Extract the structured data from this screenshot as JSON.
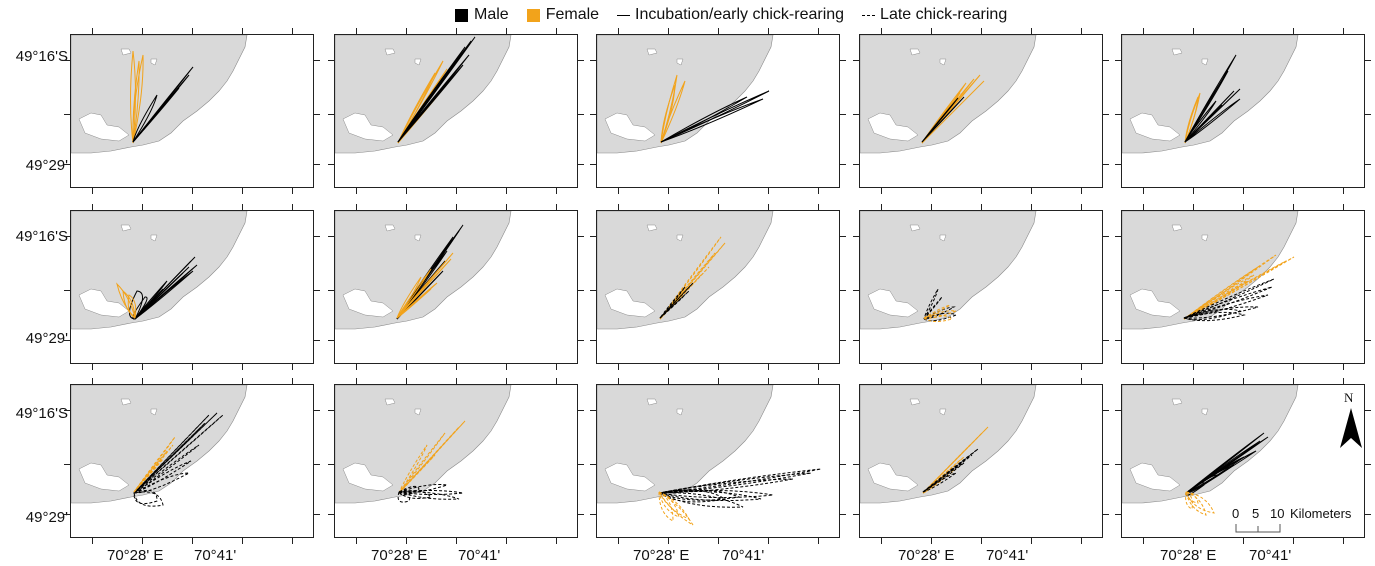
{
  "legend": {
    "male": "Male",
    "female": "Female",
    "incubation": "Incubation/early chick-rearing",
    "late": "Late chick-rearing"
  },
  "colors": {
    "male": "#000000",
    "female": "#f2a31b",
    "land": "#d9d9d9"
  },
  "axes": {
    "lat_top": "49°16'S",
    "lat_bottom": "49°29'",
    "lon_left": "70°28' E",
    "lon_right": "70°41'"
  },
  "scale_bar": {
    "ticks": [
      "0",
      "5",
      "10"
    ],
    "unit": "Kilometers"
  },
  "north_arrow": {
    "label": "N",
    "icon": "north-arrow-icon"
  },
  "panels": [
    {
      "id": "r1c1",
      "tracks": [
        {
          "sex": "female",
          "style": "solid",
          "ends": [
            [
              68,
              26
            ],
            [
              62,
              16
            ],
            [
              72,
              20
            ]
          ]
        },
        {
          "sex": "male",
          "style": "solid",
          "ends": [
            [
              122,
              32
            ],
            [
              118,
              40
            ],
            [
              108,
              53
            ],
            [
              96,
              66
            ],
            [
              86,
              60
            ]
          ]
        }
      ]
    },
    {
      "id": "r1c2",
      "tracks": [
        {
          "sex": "female",
          "style": "solid",
          "ends": [
            [
              112,
              34
            ],
            [
              108,
              26
            ],
            [
              100,
              38
            ],
            [
              116,
              44
            ]
          ]
        },
        {
          "sex": "male",
          "style": "solid",
          "ends": [
            [
              140,
              2
            ],
            [
              136,
              6
            ],
            [
              130,
              12
            ],
            [
              134,
              20
            ],
            [
              128,
              30
            ],
            [
              122,
              24
            ]
          ]
        }
      ]
    },
    {
      "id": "r1c3",
      "tracks": [
        {
          "sex": "female",
          "style": "solid",
          "ends": [
            [
              80,
              40
            ],
            [
              88,
              46
            ],
            [
              78,
              50
            ]
          ]
        },
        {
          "sex": "male",
          "style": "solid",
          "ends": [
            [
              172,
              56
            ],
            [
              166,
              64
            ],
            [
              150,
              62
            ]
          ]
        }
      ]
    },
    {
      "id": "r1c4",
      "tracks": [
        {
          "sex": "female",
          "style": "solid",
          "ends": [
            [
              120,
              40
            ],
            [
              114,
              44
            ],
            [
              124,
              46
            ],
            [
              106,
              48
            ],
            [
              100,
              58
            ]
          ]
        },
        {
          "sex": "male",
          "style": "solid",
          "ends": [
            [
              98,
              63
            ],
            [
              104,
              62
            ]
          ]
        }
      ]
    },
    {
      "id": "r1c5",
      "tracks": [
        {
          "sex": "female",
          "style": "solid",
          "ends": [
            [
              78,
              58
            ],
            [
              76,
              62
            ]
          ]
        },
        {
          "sex": "male",
          "style": "solid",
          "ends": [
            [
              114,
              20
            ],
            [
              106,
              36
            ],
            [
              112,
              56
            ],
            [
              118,
              54
            ],
            [
              100,
              70
            ],
            [
              94,
              66
            ],
            [
              118,
              64
            ]
          ]
        }
      ]
    },
    {
      "id": "r2c1",
      "tracks": [
        {
          "sex": "male",
          "style": "solid",
          "ends": [
            [
              124,
              46
            ],
            [
              120,
              50
            ],
            [
              118,
              56
            ],
            [
              126,
              54
            ],
            [
              112,
              62
            ],
            [
              122,
              60
            ],
            [
              96,
              70
            ],
            [
              92,
              78
            ],
            [
              74,
              86
            ],
            [
              66,
              80
            ]
          ]
        },
        {
          "sex": "female",
          "style": "solid",
          "ends": [
            [
              46,
              73
            ],
            [
              52,
              80
            ],
            [
              58,
              84
            ]
          ]
        }
      ]
    },
    {
      "id": "r2c2",
      "tracks": [
        {
          "sex": "male",
          "style": "solid",
          "ends": [
            [
              128,
              14
            ],
            [
              124,
              20
            ],
            [
              118,
              26
            ],
            [
              112,
              40
            ],
            [
              110,
              50
            ],
            [
              108,
              60
            ]
          ]
        },
        {
          "sex": "female",
          "style": "solid",
          "ends": [
            [
              118,
              42
            ],
            [
              116,
              48
            ],
            [
              96,
              58
            ],
            [
              86,
              66
            ],
            [
              96,
              78
            ],
            [
              102,
              72
            ]
          ]
        }
      ]
    },
    {
      "id": "r2c3",
      "tracks": [
        {
          "sex": "female",
          "style": "dashed",
          "ends": [
            [
              124,
              26
            ],
            [
              128,
              32
            ],
            [
              118,
              42
            ],
            [
              112,
              56
            ],
            [
              104,
              64
            ]
          ]
        },
        {
          "sex": "male",
          "style": "dashed",
          "ends": [
            [
              96,
              72
            ],
            [
              92,
              80
            ],
            [
              88,
              76
            ],
            [
              86,
              86
            ]
          ]
        }
      ]
    },
    {
      "id": "r2c4",
      "tracks": [
        {
          "sex": "male",
          "style": "dashed",
          "ends": [
            [
              78,
              78
            ],
            [
              82,
              86
            ],
            [
              94,
              96
            ],
            [
              96,
              104
            ]
          ]
        },
        {
          "sex": "female",
          "style": "dashed",
          "ends": [
            [
              90,
              94
            ],
            [
              96,
              100
            ],
            [
              92,
              108
            ]
          ]
        }
      ]
    },
    {
      "id": "r2c5",
      "tracks": [
        {
          "sex": "female",
          "style": "dashed",
          "ends": [
            [
              172,
              46
            ],
            [
              164,
              50
            ],
            [
              154,
              44
            ],
            [
              136,
              56
            ],
            [
              126,
              70
            ],
            [
              132,
              64
            ]
          ]
        },
        {
          "sex": "male",
          "style": "dashed",
          "ends": [
            [
              152,
              68
            ],
            [
              150,
              76
            ],
            [
              146,
              84
            ],
            [
              136,
              96
            ],
            [
              122,
              104
            ],
            [
              118,
              100
            ]
          ]
        }
      ]
    },
    {
      "id": "r3c1",
      "tracks": [
        {
          "sex": "male",
          "style": "dashed",
          "ends": [
            [
              152,
              30
            ],
            [
              146,
              28
            ],
            [
              138,
              30
            ],
            [
              134,
              38
            ],
            [
              128,
              60
            ],
            [
              120,
              76
            ],
            [
              118,
              88
            ],
            [
              92,
              120
            ],
            [
              86,
              116
            ]
          ]
        },
        {
          "sex": "female",
          "style": "dashed",
          "ends": [
            [
              104,
              52
            ],
            [
              102,
              60
            ],
            [
              96,
              66
            ],
            [
              92,
              74
            ]
          ]
        }
      ]
    },
    {
      "id": "r3c2",
      "tracks": [
        {
          "sex": "female",
          "style": "dashed",
          "ends": [
            [
              130,
              36
            ],
            [
              124,
              42
            ],
            [
              110,
              48
            ],
            [
              92,
              60
            ],
            [
              100,
              70
            ]
          ]
        },
        {
          "sex": "male",
          "style": "dashed",
          "ends": [
            [
              128,
              108
            ],
            [
              124,
              114
            ],
            [
              112,
              100
            ],
            [
              96,
              112
            ],
            [
              84,
              104
            ],
            [
              74,
              116
            ]
          ]
        }
      ]
    },
    {
      "id": "r3c3",
      "tracks": [
        {
          "sex": "male",
          "style": "dashed",
          "ends": [
            [
              224,
              84
            ],
            [
              214,
              88
            ],
            [
              196,
              94
            ],
            [
              176,
              110
            ],
            [
              164,
              114
            ],
            [
              146,
              122
            ],
            [
              142,
              112
            ],
            [
              128,
              114
            ]
          ]
        },
        {
          "sex": "female",
          "style": "dashed",
          "ends": [
            [
              96,
              140
            ],
            [
              92,
              134
            ],
            [
              82,
              132
            ],
            [
              76,
              136
            ]
          ]
        }
      ]
    },
    {
      "id": "r3c4",
      "tracks": [
        {
          "sex": "female",
          "style": "dashed",
          "ends": [
            [
              128,
              42
            ],
            [
              122,
              48
            ],
            [
              110,
              60
            ],
            [
              104,
              72
            ],
            [
              96,
              84
            ],
            [
              86,
              90
            ]
          ]
        },
        {
          "sex": "male",
          "style": "dashed",
          "ends": [
            [
              118,
              64
            ],
            [
              112,
              70
            ],
            [
              104,
              78
            ],
            [
              96,
              88
            ]
          ]
        }
      ]
    },
    {
      "id": "r3c5",
      "tracks": [
        {
          "sex": "male",
          "style": "solid",
          "ends": [
            [
              146,
              52
            ],
            [
              142,
              48
            ],
            [
              138,
              56
            ],
            [
              134,
              66
            ],
            [
              122,
              72
            ],
            [
              112,
              80
            ],
            [
              96,
              90
            ],
            [
              82,
              100
            ]
          ]
        },
        {
          "sex": "female",
          "style": "dashed",
          "ends": [
            [
              76,
              118
            ],
            [
              70,
              124
            ],
            [
              84,
              130
            ],
            [
              92,
              128
            ]
          ]
        }
      ]
    }
  ]
}
